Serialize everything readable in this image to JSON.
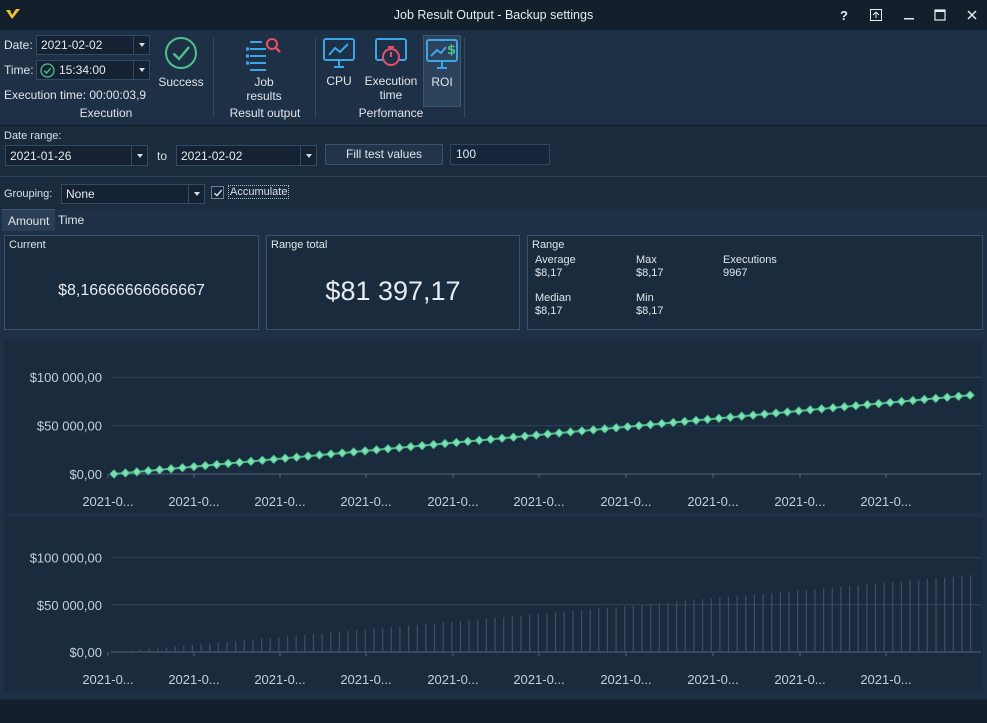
{
  "window": {
    "title": "Job Result Output - Backup settings",
    "help_label": "?"
  },
  "ribbon": {
    "date_label": "Date:",
    "date_value": "2021-02-02",
    "time_label": "Time:",
    "time_value": "15:34:00",
    "execution_time_text": "Execution time: 00:00:03,9",
    "success_label": "Success",
    "execution_caption": "Execution",
    "job_results_line1": "Job",
    "job_results_line2": "results",
    "result_output_caption": "Result output",
    "cpu_label": "CPU",
    "exec_time_line1": "Execution",
    "exec_time_line2": "time",
    "roi_label": "ROI",
    "performance_caption": "Perfomance"
  },
  "filters": {
    "date_range_label": "Date range:",
    "date_from": "2021-01-26",
    "to_label": "to",
    "date_to": "2021-02-02",
    "fill_button": "Fill test values",
    "fill_count": "100",
    "grouping_label": "Grouping:",
    "grouping_value": "None",
    "accumulate_label": "Accumulate",
    "accumulate_checked": true
  },
  "tabs": [
    {
      "label": "Amount",
      "active": true
    },
    {
      "label": "Time",
      "active": false
    }
  ],
  "stats": {
    "current_title": "Current",
    "current_value": "$8,16666666666667",
    "range_total_title": "Range total",
    "range_total_value": "$81 397,17",
    "range_title": "Range",
    "average_label": "Average",
    "average_value": "$8,17",
    "max_label": "Max",
    "max_value": "$8,17",
    "executions_label": "Executions",
    "executions_value": "9967",
    "median_label": "Median",
    "median_value": "$8,17",
    "min_label": "Min",
    "min_value": "$8,17"
  },
  "colors": {
    "accent_green": "#4fc08d",
    "marker_fill": "#7fe0b4",
    "icon_blue": "#3aa8e8",
    "icon_red": "#e8506a",
    "background": "#1b2b3e",
    "ribbon_bg": "#1e3045",
    "bar_color": "#3a5068"
  },
  "chart_data": [
    {
      "type": "line",
      "y_ticks": [
        "$100 000,00",
        "$50 000,00",
        "$0,00"
      ],
      "x_tick_labels": [
        "2021-0...",
        "2021-0...",
        "2021-0...",
        "2021-0...",
        "2021-0...",
        "2021-0...",
        "2021-0...",
        "2021-0...",
        "2021-0...",
        "2021-0..."
      ],
      "ylim": [
        0,
        125000
      ],
      "grid": true,
      "series": [
        {
          "start": 0,
          "end": 81397.17,
          "points": 76
        }
      ]
    },
    {
      "type": "bar",
      "y_ticks": [
        "$100 000,00",
        "$50 000,00",
        "$0,00"
      ],
      "x_tick_labels": [
        "2021-0...",
        "2021-0...",
        "2021-0...",
        "2021-0...",
        "2021-0...",
        "2021-0...",
        "2021-0...",
        "2021-0...",
        "2021-0...",
        "2021-0..."
      ],
      "ylim": [
        0,
        125000
      ],
      "grid": true,
      "series": [
        {
          "start": 0,
          "end": 81397.17,
          "points": 100
        }
      ]
    }
  ]
}
